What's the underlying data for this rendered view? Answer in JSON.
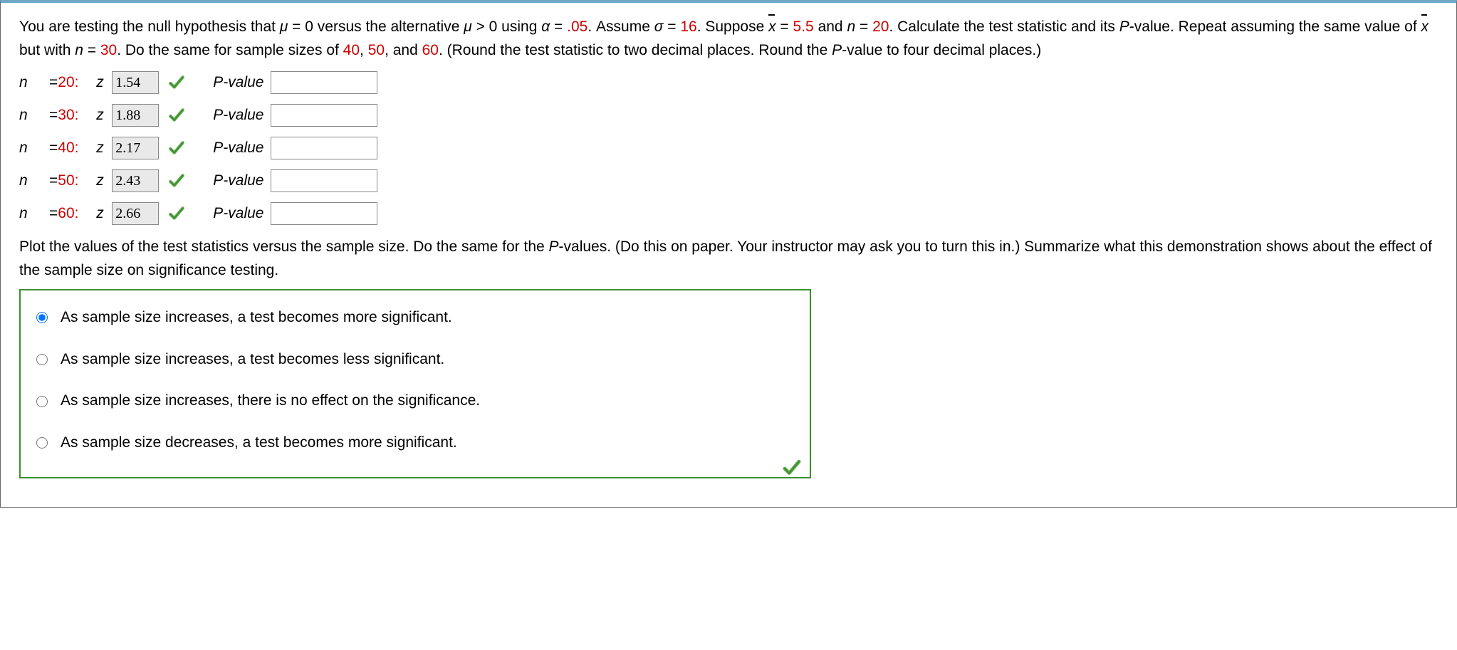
{
  "problem": {
    "t1": "You are testing the null hypothesis that ",
    "mu0": "μ",
    "eq0": " = 0 versus the alternative ",
    "mu1": "μ",
    "gt0": " > 0 using ",
    "alpha": "α",
    "eqalpha": " = ",
    "alphaval": ".05",
    "t2": ". Assume ",
    "sigma": "σ",
    "eqsig": " = ",
    "sigval": "16",
    "t3": ". Suppose ",
    "xbar": "x",
    "eqx": " = ",
    "xval": "5.5",
    "t4": " and ",
    "n": "n",
    "eqn": " = ",
    "nval1": "20",
    "t5": ". Calculate the test statistic and its ",
    "P": "P",
    "t6": "-value. Repeat assuming the same value of ",
    "xbar2": "x",
    "t7": " but with ",
    "n2": "n",
    "eqn2": " = ",
    "nval2": "30",
    "t8": ". Do the same for sample sizes of ",
    "nv40": "40",
    "c1": ", ",
    "nv50": "50",
    "c2": ", and ",
    "nv60": "60",
    "t9": ". (Round the test statistic to two decimal places. Round the ",
    "P2": "P",
    "t10": "-value to four decimal places.)"
  },
  "rows": [
    {
      "n_lbl": "n",
      "eq": "=",
      "n": "20",
      "colon": ":",
      "z_lbl": "z",
      "z": "1.54",
      "p_lbl": "P-value",
      "p": ""
    },
    {
      "n_lbl": "n",
      "eq": "=",
      "n": "30",
      "colon": ":",
      "z_lbl": "z",
      "z": "1.88",
      "p_lbl": "P-value",
      "p": ""
    },
    {
      "n_lbl": "n",
      "eq": "=",
      "n": "40",
      "colon": ":",
      "z_lbl": "z",
      "z": "2.17",
      "p_lbl": "P-value",
      "p": ""
    },
    {
      "n_lbl": "n",
      "eq": "=",
      "n": "50",
      "colon": ":",
      "z_lbl": "z",
      "z": "2.43",
      "p_lbl": "P-value",
      "p": ""
    },
    {
      "n_lbl": "n",
      "eq": "=",
      "n": "60",
      "colon": ":",
      "z_lbl": "z",
      "z": "2.66",
      "p_lbl": "P-value",
      "p": ""
    }
  ],
  "para2": {
    "t1": "Plot the values of the test statistics versus the sample size. Do the same for the ",
    "P": "P",
    "t2": "-values. (Do this on paper. Your instructor may ask you to turn this in.) Summarize what this demonstration shows about the effect of the sample size on significance testing."
  },
  "choices": [
    {
      "label": "As sample size increases, a test becomes more significant.",
      "selected": true
    },
    {
      "label": "As sample size increases, a test becomes less significant.",
      "selected": false
    },
    {
      "label": "As sample size increases, there is no effect on the significance.",
      "selected": false
    },
    {
      "label": "As sample size decreases, a test becomes more significant.",
      "selected": false
    }
  ],
  "colors": {
    "red": "#cc0000",
    "border_top": "#6fa7c7",
    "green_border": "#3a8f2f",
    "check_green": "#5fae4f",
    "check_dark": "#3e8a32",
    "zbox_bg": "#e9e9e9"
  }
}
